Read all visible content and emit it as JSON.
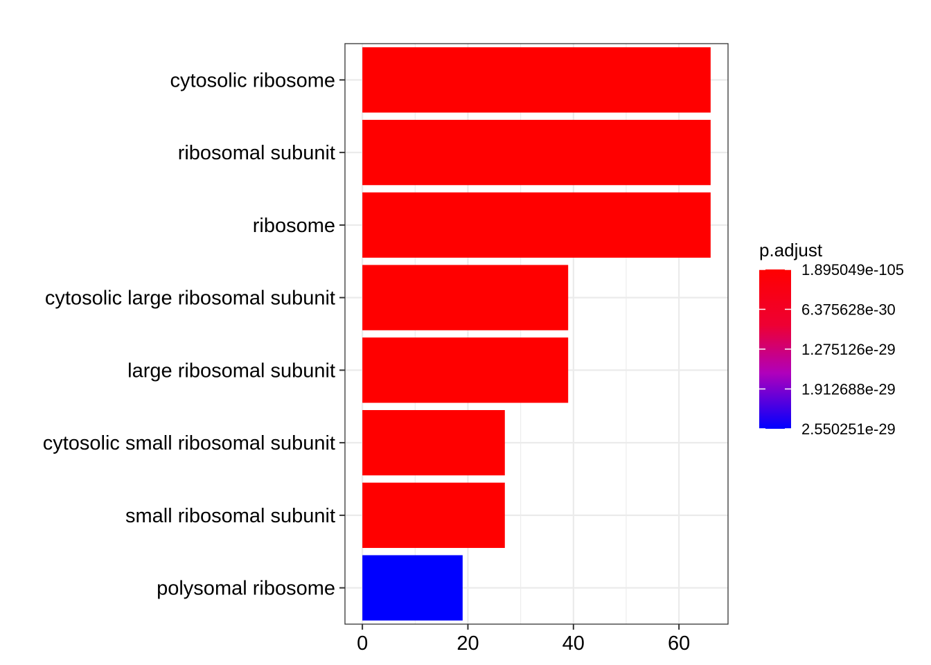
{
  "chart_data": {
    "type": "bar",
    "orientation": "horizontal",
    "categories": [
      "cytosolic ribosome",
      "ribosomal subunit",
      "ribosome",
      "cytosolic large ribosomal subunit",
      "large ribosomal subunit",
      "cytosolic small ribosomal subunit",
      "small ribosomal subunit",
      "polysomal ribosome"
    ],
    "values": [
      66,
      66,
      66,
      39,
      39,
      27,
      27,
      19
    ],
    "bar_colors": [
      "#ff0000",
      "#ff0000",
      "#ff0000",
      "#ff0000",
      "#ff0000",
      "#ff0000",
      "#ff0000",
      "#0000ff"
    ],
    "xlim": [
      -3.3,
      69.3
    ],
    "x_ticks": [
      "0",
      "20",
      "40",
      "60"
    ],
    "x_tick_values": [
      0,
      20,
      40,
      60
    ],
    "x_minor_values": [
      10,
      30,
      50
    ],
    "grid": true,
    "theme": "bw",
    "legend": {
      "title": "p.adjust",
      "position": "right",
      "type": "colorbar",
      "color_low": "#ff0000",
      "color_high": "#0000ff",
      "labels": [
        "1.895049e-105",
        "6.375628e-30",
        "1.275126e-29",
        "1.912688e-29",
        "2.550251e-29"
      ]
    }
  }
}
